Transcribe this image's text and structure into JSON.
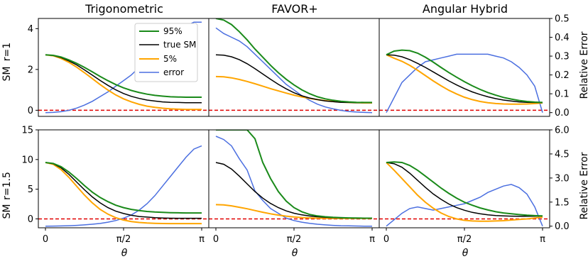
{
  "chart_data": {
    "type": "line",
    "column_titles": [
      "Trigonometric",
      "FAVOR+",
      "Angular Hybrid"
    ],
    "row_labels": [
      "r=1",
      "r=1.5"
    ],
    "row_ylabel": "SM",
    "xlabel": "θ",
    "right_ylabel": "Relative Error",
    "x_ticks": [
      "0",
      "π/2",
      "π"
    ],
    "xlim": [
      0,
      3.1416
    ],
    "y_left": [
      {
        "ylim": [
          -0.3,
          4.5
        ],
        "ticks": [
          0,
          2,
          4
        ],
        "tick_labels": [
          "0",
          "2",
          "4"
        ]
      },
      {
        "ylim": [
          -1.5,
          15
        ],
        "ticks": [
          0,
          5,
          10,
          15
        ],
        "tick_labels": [
          "0",
          "5",
          "10",
          "15"
        ]
      }
    ],
    "y_right": [
      {
        "ylim": [
          -0.02,
          0.5
        ],
        "ticks": [
          0.0,
          0.1,
          0.2,
          0.3,
          0.4,
          0.5
        ],
        "tick_labels": [
          "0.0",
          "0.1",
          "0.2",
          "0.3",
          "0.4",
          "0.5"
        ]
      },
      {
        "ylim": [
          -0.1,
          6.0
        ],
        "ticks": [
          0.0,
          1.5,
          3.0,
          4.5,
          6.0
        ],
        "tick_labels": [
          "0.0",
          "1.5",
          "3.0",
          "4.5",
          "6.0"
        ]
      }
    ],
    "legend": {
      "placement": "upper-right of first panel",
      "entries": [
        {
          "label": "95%",
          "series": "p95"
        },
        {
          "label": "true SM",
          "series": "true"
        },
        {
          "label": "5%",
          "series": "p5"
        },
        {
          "label": "error",
          "series": "error"
        }
      ]
    },
    "colors": {
      "p95": "#1a8a1a",
      "true": "#000000",
      "p5": "#ffa500",
      "error": "#4b6fe0",
      "zero": "#e00000"
    },
    "x": [
      0,
      0.1571,
      0.3142,
      0.4712,
      0.6283,
      0.7854,
      0.9425,
      1.0996,
      1.2566,
      1.4137,
      1.5708,
      1.7279,
      1.885,
      2.042,
      2.1991,
      2.3562,
      2.5133,
      2.6704,
      2.8274,
      2.9845,
      3.1416
    ],
    "panels": [
      {
        "id": "trig-r1",
        "series": {
          "true": [
            2.72,
            2.68,
            2.58,
            2.42,
            2.22,
            1.98,
            1.72,
            1.46,
            1.22,
            1.0,
            0.82,
            0.68,
            0.58,
            0.5,
            0.45,
            0.41,
            0.39,
            0.38,
            0.37,
            0.37,
            0.37
          ],
          "p95": [
            2.72,
            2.69,
            2.61,
            2.47,
            2.3,
            2.1,
            1.88,
            1.66,
            1.45,
            1.26,
            1.1,
            0.97,
            0.87,
            0.79,
            0.73,
            0.69,
            0.66,
            0.65,
            0.64,
            0.64,
            0.64
          ],
          "p5": [
            2.72,
            2.67,
            2.54,
            2.35,
            2.11,
            1.84,
            1.55,
            1.26,
            0.99,
            0.75,
            0.56,
            0.41,
            0.29,
            0.2,
            0.14,
            0.1,
            0.07,
            0.05,
            0.04,
            0.04,
            0.04
          ],
          "error": [
            0.0,
            0.001,
            0.005,
            0.012,
            0.024,
            0.04,
            0.06,
            0.085,
            0.11,
            0.14,
            0.17,
            0.2,
            0.24,
            0.28,
            0.32,
            0.36,
            0.4,
            0.43,
            0.46,
            0.48,
            0.48
          ]
        }
      },
      {
        "id": "favor-r1",
        "series": {
          "true": [
            2.72,
            2.7,
            2.62,
            2.48,
            2.28,
            2.04,
            1.78,
            1.52,
            1.27,
            1.05,
            0.86,
            0.71,
            0.6,
            0.52,
            0.46,
            0.42,
            0.39,
            0.38,
            0.37,
            0.37,
            0.37
          ],
          "p95": [
            4.5,
            4.42,
            4.2,
            3.85,
            3.45,
            3.0,
            2.6,
            2.2,
            1.84,
            1.52,
            1.24,
            1.0,
            0.81,
            0.66,
            0.56,
            0.49,
            0.44,
            0.41,
            0.39,
            0.38,
            0.38
          ],
          "p5": [
            1.65,
            1.64,
            1.59,
            1.51,
            1.41,
            1.3,
            1.18,
            1.06,
            0.95,
            0.84,
            0.74,
            0.65,
            0.58,
            0.52,
            0.47,
            0.43,
            0.4,
            0.38,
            0.37,
            0.36,
            0.36
          ],
          "error": [
            0.45,
            0.42,
            0.4,
            0.38,
            0.35,
            0.31,
            0.27,
            0.23,
            0.19,
            0.15,
            0.12,
            0.09,
            0.065,
            0.045,
            0.03,
            0.02,
            0.012,
            0.006,
            0.003,
            0.001,
            0.0
          ]
        }
      },
      {
        "id": "hybrid-r1",
        "series": {
          "true": [
            2.72,
            2.7,
            2.62,
            2.48,
            2.3,
            2.1,
            1.88,
            1.66,
            1.44,
            1.24,
            1.06,
            0.9,
            0.77,
            0.66,
            0.57,
            0.5,
            0.45,
            0.41,
            0.39,
            0.38,
            0.37
          ],
          "p95": [
            2.72,
            2.9,
            2.95,
            2.92,
            2.8,
            2.6,
            2.36,
            2.1,
            1.85,
            1.62,
            1.4,
            1.2,
            1.02,
            0.87,
            0.74,
            0.63,
            0.55,
            0.48,
            0.43,
            0.4,
            0.38
          ],
          "p5": [
            2.72,
            2.55,
            2.4,
            2.2,
            1.96,
            1.7,
            1.44,
            1.2,
            0.98,
            0.8,
            0.64,
            0.52,
            0.43,
            0.37,
            0.33,
            0.31,
            0.3,
            0.3,
            0.31,
            0.33,
            0.36
          ],
          "error": [
            0.0,
            0.08,
            0.16,
            0.2,
            0.24,
            0.27,
            0.28,
            0.29,
            0.3,
            0.31,
            0.31,
            0.31,
            0.31,
            0.31,
            0.3,
            0.29,
            0.27,
            0.24,
            0.2,
            0.14,
            0.0
          ]
        }
      },
      {
        "id": "trig-r15",
        "series": {
          "true": [
            9.5,
            9.3,
            8.6,
            7.5,
            6.2,
            4.9,
            3.7,
            2.7,
            1.9,
            1.3,
            0.9,
            0.6,
            0.4,
            0.3,
            0.2,
            0.15,
            0.12,
            0.1,
            0.1,
            0.1,
            0.1
          ],
          "p95": [
            9.5,
            9.35,
            8.8,
            7.9,
            6.8,
            5.6,
            4.5,
            3.6,
            2.9,
            2.3,
            1.9,
            1.6,
            1.4,
            1.25,
            1.15,
            1.1,
            1.05,
            1.02,
            1.0,
            1.0,
            1.0
          ],
          "p5": [
            9.5,
            9.2,
            8.3,
            7.0,
            5.5,
            4.0,
            2.7,
            1.6,
            0.8,
            0.2,
            -0.2,
            -0.45,
            -0.6,
            -0.7,
            -0.75,
            -0.78,
            -0.8,
            -0.8,
            -0.8,
            -0.8,
            -0.8
          ],
          "error": [
            0.0,
            0.005,
            0.015,
            0.03,
            0.05,
            0.08,
            0.12,
            0.17,
            0.25,
            0.35,
            0.5,
            0.7,
            1.0,
            1.4,
            1.9,
            2.5,
            3.1,
            3.7,
            4.3,
            4.8,
            5.0
          ]
        }
      },
      {
        "id": "favor-r15",
        "series": {
          "true": [
            9.5,
            9.2,
            8.4,
            7.2,
            5.9,
            4.6,
            3.5,
            2.6,
            1.9,
            1.35,
            0.95,
            0.68,
            0.48,
            0.35,
            0.26,
            0.2,
            0.16,
            0.14,
            0.12,
            0.11,
            0.1
          ],
          "p95": [
            15.0,
            15.0,
            15.0,
            15.0,
            15.0,
            13.5,
            9.5,
            6.8,
            4.6,
            3.0,
            1.9,
            1.2,
            0.75,
            0.5,
            0.35,
            0.26,
            0.2,
            0.16,
            0.14,
            0.12,
            0.11
          ],
          "p5": [
            2.4,
            2.35,
            2.2,
            1.95,
            1.7,
            1.4,
            1.12,
            0.86,
            0.64,
            0.46,
            0.32,
            0.22,
            0.16,
            0.12,
            0.1,
            0.09,
            0.09,
            0.09,
            0.09,
            0.09,
            0.09
          ],
          "error": [
            5.6,
            5.4,
            5.0,
            4.2,
            3.5,
            2.2,
            1.6,
            1.1,
            0.8,
            0.5,
            0.35,
            0.25,
            0.18,
            0.12,
            0.08,
            0.05,
            0.03,
            0.02,
            0.01,
            0.0,
            0.0
          ]
        }
      },
      {
        "id": "hybrid-r15",
        "series": {
          "true": [
            9.5,
            9.3,
            8.7,
            7.7,
            6.5,
            5.3,
            4.2,
            3.3,
            2.5,
            1.9,
            1.45,
            1.1,
            0.85,
            0.68,
            0.56,
            0.5,
            0.46,
            0.44,
            0.44,
            0.45,
            0.48
          ],
          "p95": [
            9.5,
            9.6,
            9.5,
            9.0,
            8.2,
            7.2,
            6.2,
            5.2,
            4.3,
            3.5,
            2.8,
            2.3,
            1.85,
            1.5,
            1.2,
            1.0,
            0.85,
            0.72,
            0.62,
            0.55,
            0.5
          ],
          "p5": [
            9.5,
            8.2,
            6.8,
            5.4,
            4.0,
            2.8,
            1.8,
            1.0,
            0.4,
            0.0,
            -0.25,
            -0.35,
            -0.4,
            -0.4,
            -0.35,
            -0.3,
            -0.2,
            -0.1,
            0.0,
            0.15,
            0.3
          ],
          "error": [
            0.0,
            0.4,
            0.8,
            1.1,
            1.2,
            1.1,
            1.0,
            1.1,
            1.2,
            1.3,
            1.4,
            1.6,
            1.8,
            2.1,
            2.3,
            2.5,
            2.6,
            2.4,
            2.0,
            1.2,
            0.0
          ]
        }
      }
    ]
  }
}
